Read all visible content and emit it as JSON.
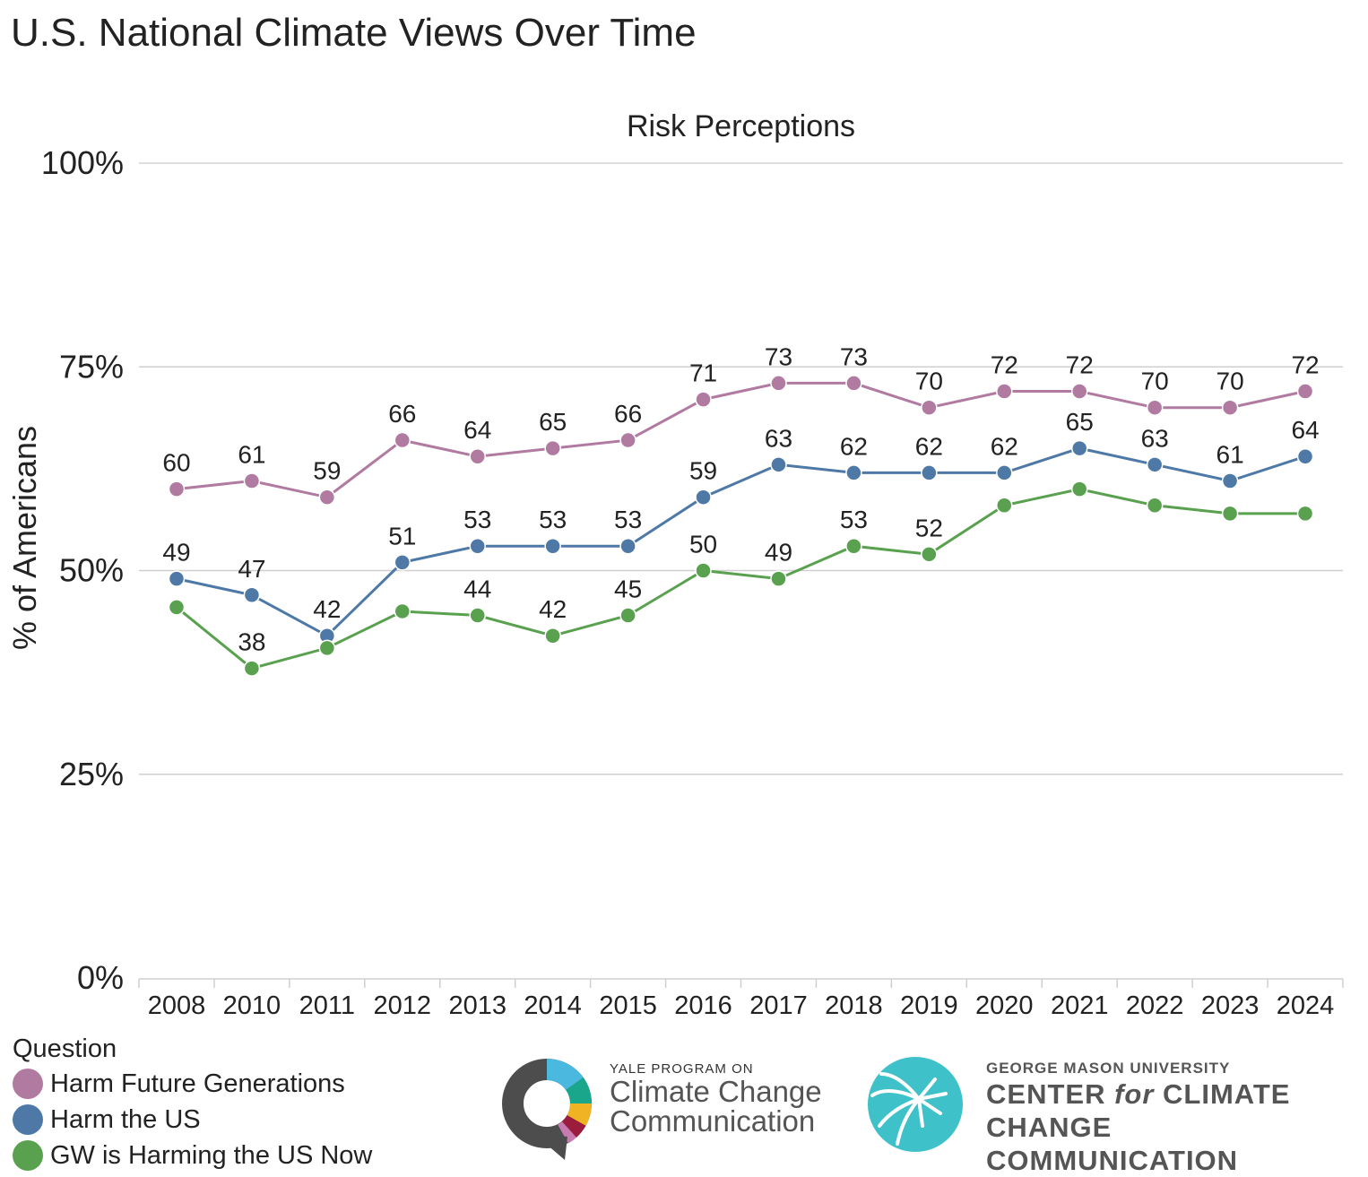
{
  "page_title": "U.S. National Climate Views Over Time",
  "chart_data": {
    "type": "line",
    "title": "Risk Perceptions",
    "ylabel": "% of Americans",
    "xlabel": "",
    "ylim": [
      0,
      100
    ],
    "yticks": [
      "0%",
      "25%",
      "50%",
      "75%",
      "100%"
    ],
    "categories": [
      "2008",
      "2010",
      "2011",
      "2012",
      "2013",
      "2014",
      "2015",
      "2016",
      "2017",
      "2018",
      "2019",
      "2020",
      "2021",
      "2022",
      "2023",
      "2024"
    ],
    "grid": true,
    "series": [
      {
        "name": "Harm Future Generations",
        "color": "#b07aa1",
        "values": [
          60,
          61,
          59,
          66,
          64,
          65,
          66,
          71,
          73,
          73,
          70,
          72,
          72,
          70,
          70,
          72
        ],
        "labels": [
          "60",
          "61",
          "59",
          "66",
          "64",
          "65",
          "66",
          "71",
          "73",
          "73",
          "70",
          "72",
          "72",
          "70",
          "70",
          "72"
        ]
      },
      {
        "name": "Harm the US",
        "color": "#4e79a7",
        "values": [
          49,
          47,
          42,
          51,
          53,
          53,
          53,
          59,
          63,
          62,
          62,
          62,
          65,
          63,
          61,
          64
        ],
        "labels": [
          "49",
          "47",
          "42",
          "51",
          "53",
          "53",
          "53",
          "59",
          "63",
          "62",
          "62",
          "62",
          "65",
          "63",
          "61",
          "64"
        ]
      },
      {
        "name": "GW is Harming the US Now",
        "color": "#59a14f",
        "values": [
          45.5,
          38,
          40.5,
          45,
          44.5,
          42,
          44.5,
          50,
          49,
          53,
          52,
          58,
          60,
          58,
          57,
          57
        ],
        "labels": [
          "",
          "38",
          "",
          "",
          "44",
          "42",
          "45",
          "50",
          "49",
          "53",
          "52",
          "",
          "",
          "",
          "",
          ""
        ]
      }
    ]
  },
  "legend": {
    "title": "Question"
  },
  "logos": {
    "yale": {
      "line1": "YALE PROGRAM ON",
      "line2": "Climate Change",
      "line3": "Communication"
    },
    "gmu": {
      "line1": "GEORGE MASON UNIVERSITY",
      "line2a": "CENTER ",
      "line2b": "for",
      "line2c": " CLIMATE CHANGE",
      "line3": "COMMUNICATION"
    }
  }
}
